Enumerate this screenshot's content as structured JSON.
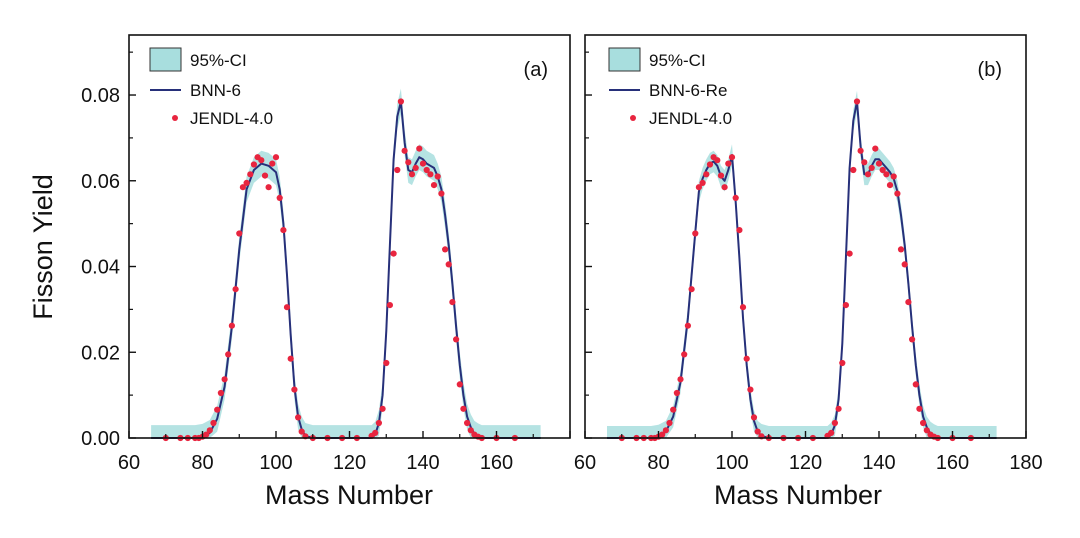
{
  "figure": {
    "ylabel": "Fisson Yield",
    "xlabel": "Mass Number"
  },
  "colors": {
    "ci_band": "#a8dede",
    "model_line": "#27307a",
    "reference_points": "#e8253f",
    "axes": "#111111"
  },
  "chart_data": [
    {
      "type": "line",
      "panel_label": "(a)",
      "xlabel": "Mass Number",
      "ylabel": "Fisson Yield",
      "xlim": [
        60,
        180
      ],
      "ylim": [
        0,
        0.094
      ],
      "xticks": [
        "60",
        "80",
        "100",
        "120",
        "140",
        "160"
      ],
      "yticks": [
        "0.00",
        "0.02",
        "0.04",
        "0.06",
        "0.08"
      ],
      "legend": {
        "position": "top-left",
        "entries": [
          "95%-CI",
          "BNN-6",
          "JENDL-4.0"
        ]
      },
      "series": [
        {
          "name": "BNN-6",
          "x": [
            66,
            70,
            74,
            76,
            78,
            80,
            82,
            84,
            86,
            88,
            90,
            92,
            94,
            96,
            98,
            100,
            101,
            102,
            103,
            104,
            105,
            106,
            107,
            108,
            110,
            114,
            118,
            122,
            126,
            127,
            128,
            129,
            130,
            131,
            132,
            133,
            134,
            135,
            136,
            137,
            138,
            139,
            140,
            141,
            142,
            143,
            144,
            145,
            146,
            147,
            148,
            149,
            150,
            151,
            152,
            153,
            154,
            155,
            156,
            160,
            165,
            172
          ],
          "values": [
            0,
            0,
            0,
            0,
            0,
            0.0003,
            0.0012,
            0.0045,
            0.012,
            0.026,
            0.044,
            0.058,
            0.0625,
            0.064,
            0.0635,
            0.062,
            0.058,
            0.05,
            0.038,
            0.024,
            0.012,
            0.005,
            0.002,
            0.0005,
            0,
            0,
            0,
            0,
            0,
            0.0008,
            0.0035,
            0.01,
            0.025,
            0.045,
            0.065,
            0.075,
            0.0785,
            0.069,
            0.0625,
            0.062,
            0.064,
            0.0655,
            0.065,
            0.064,
            0.0635,
            0.063,
            0.061,
            0.058,
            0.052,
            0.045,
            0.036,
            0.026,
            0.017,
            0.01,
            0.005,
            0.0025,
            0.001,
            0.0004,
            0,
            0,
            0,
            0
          ]
        },
        {
          "name": "95%-CI",
          "x": [
            66,
            70,
            74,
            76,
            78,
            80,
            82,
            84,
            86,
            88,
            90,
            92,
            94,
            96,
            98,
            100,
            101,
            102,
            103,
            104,
            105,
            106,
            107,
            108,
            110,
            114,
            118,
            122,
            126,
            127,
            128,
            129,
            130,
            131,
            132,
            133,
            134,
            135,
            136,
            137,
            138,
            139,
            140,
            141,
            142,
            143,
            144,
            145,
            146,
            147,
            148,
            149,
            150,
            151,
            152,
            153,
            154,
            155,
            156,
            160,
            165,
            172
          ],
          "lower": [
            0,
            0,
            0,
            0,
            0,
            0,
            0,
            0.0015,
            0.009,
            0.023,
            0.041,
            0.055,
            0.0595,
            0.061,
            0.0605,
            0.059,
            0.055,
            0.047,
            0.035,
            0.021,
            0.009,
            0.002,
            0,
            0,
            0,
            0,
            0,
            0,
            0,
            0,
            0.0005,
            0.007,
            0.022,
            0.042,
            0.062,
            0.072,
            0.0755,
            0.066,
            0.0595,
            0.059,
            0.061,
            0.0625,
            0.062,
            0.061,
            0.0605,
            0.06,
            0.058,
            0.055,
            0.049,
            0.042,
            0.033,
            0.023,
            0.014,
            0.007,
            0.002,
            0,
            0,
            0,
            0,
            0,
            0,
            0
          ],
          "upper": [
            0.003,
            0.003,
            0.003,
            0.003,
            0.003,
            0.0033,
            0.0042,
            0.0075,
            0.015,
            0.029,
            0.047,
            0.061,
            0.0655,
            0.067,
            0.0665,
            0.065,
            0.061,
            0.053,
            0.041,
            0.027,
            0.015,
            0.008,
            0.005,
            0.0035,
            0.003,
            0.003,
            0.003,
            0.003,
            0.003,
            0.0038,
            0.0065,
            0.013,
            0.028,
            0.048,
            0.068,
            0.078,
            0.0815,
            0.072,
            0.0655,
            0.065,
            0.067,
            0.0685,
            0.068,
            0.067,
            0.0665,
            0.066,
            0.064,
            0.061,
            0.055,
            0.048,
            0.039,
            0.029,
            0.02,
            0.013,
            0.008,
            0.0055,
            0.004,
            0.0034,
            0.003,
            0.003,
            0.003,
            0.003
          ]
        },
        {
          "name": "JENDL-4.0",
          "x": [
            70,
            74,
            76,
            78,
            79,
            80,
            81,
            82,
            83,
            84,
            85,
            86,
            87,
            88,
            89,
            90,
            91,
            92,
            93,
            94,
            95,
            96,
            97,
            98,
            99,
            100,
            101,
            102,
            103,
            104,
            105,
            106,
            107,
            108,
            110,
            114,
            118,
            122,
            126,
            127,
            128,
            129,
            130,
            131,
            132,
            133,
            134,
            135,
            136,
            137,
            138,
            139,
            140,
            141,
            142,
            143,
            144,
            145,
            146,
            147,
            148,
            149,
            150,
            151,
            152,
            153,
            154,
            155,
            156,
            160,
            165
          ],
          "values": [
            0,
            0,
            0,
            0,
            0,
            0.0003,
            0.0008,
            0.0018,
            0.0035,
            0.0066,
            0.0105,
            0.0137,
            0.0195,
            0.0262,
            0.0347,
            0.0477,
            0.0585,
            0.0595,
            0.0615,
            0.0638,
            0.0655,
            0.0648,
            0.0612,
            0.0585,
            0.064,
            0.0655,
            0.056,
            0.0485,
            0.0305,
            0.0185,
            0.0113,
            0.0048,
            0.0015,
            0.0004,
            0,
            0,
            0,
            0,
            0.0005,
            0.0012,
            0.0035,
            0.0068,
            0.0175,
            0.031,
            0.043,
            0.0625,
            0.0785,
            0.067,
            0.0643,
            0.0615,
            0.063,
            0.0675,
            0.064,
            0.0625,
            0.0615,
            0.059,
            0.061,
            0.057,
            0.044,
            0.0405,
            0.0317,
            0.023,
            0.0125,
            0.0068,
            0.0035,
            0.0018,
            0.0008,
            0.0003,
            0,
            0,
            0
          ]
        }
      ]
    },
    {
      "type": "line",
      "panel_label": "(b)",
      "xlabel": "Mass Number",
      "ylabel": "Fisson Yield",
      "xlim": [
        60,
        180
      ],
      "ylim": [
        0,
        0.094
      ],
      "xticks": [
        "60",
        "80",
        "100",
        "120",
        "140",
        "160",
        "180"
      ],
      "yticks": [
        "0.00",
        "0.02",
        "0.04",
        "0.06",
        "0.08"
      ],
      "legend": {
        "position": "top-left",
        "entries": [
          "95%-CI",
          "BNN-6-Re",
          "JENDL-4.0"
        ]
      },
      "series": [
        {
          "name": "BNN-6-Re",
          "x": [
            66,
            70,
            74,
            76,
            78,
            80,
            82,
            84,
            86,
            88,
            90,
            91,
            92,
            93,
            94,
            95,
            96,
            97,
            98,
            99,
            100,
            101,
            102,
            103,
            104,
            105,
            106,
            107,
            108,
            110,
            114,
            118,
            122,
            126,
            127,
            128,
            129,
            130,
            131,
            132,
            133,
            134,
            135,
            136,
            137,
            138,
            139,
            140,
            141,
            142,
            143,
            144,
            145,
            146,
            147,
            148,
            149,
            150,
            151,
            152,
            153,
            154,
            155,
            156,
            160,
            165,
            172
          ],
          "values": [
            0,
            0,
            0,
            0,
            0,
            0.0003,
            0.0015,
            0.005,
            0.013,
            0.028,
            0.048,
            0.0575,
            0.0605,
            0.0625,
            0.064,
            0.0645,
            0.0635,
            0.061,
            0.06,
            0.0625,
            0.066,
            0.055,
            0.042,
            0.028,
            0.017,
            0.009,
            0.004,
            0.0015,
            0.0005,
            0,
            0,
            0,
            0,
            0,
            0.0008,
            0.003,
            0.009,
            0.022,
            0.042,
            0.063,
            0.074,
            0.0785,
            0.068,
            0.0615,
            0.0615,
            0.0635,
            0.065,
            0.065,
            0.064,
            0.063,
            0.062,
            0.0605,
            0.0575,
            0.052,
            0.045,
            0.036,
            0.026,
            0.017,
            0.01,
            0.005,
            0.0025,
            0.001,
            0.0004,
            0,
            0,
            0,
            0
          ]
        },
        {
          "name": "95%-CI",
          "x": [
            66,
            70,
            74,
            76,
            78,
            80,
            82,
            84,
            86,
            88,
            90,
            91,
            92,
            93,
            94,
            95,
            96,
            97,
            98,
            99,
            100,
            101,
            102,
            103,
            104,
            105,
            106,
            107,
            108,
            110,
            114,
            118,
            122,
            126,
            127,
            128,
            129,
            130,
            131,
            132,
            133,
            134,
            135,
            136,
            137,
            138,
            139,
            140,
            141,
            142,
            143,
            144,
            145,
            146,
            147,
            148,
            149,
            150,
            151,
            152,
            153,
            154,
            155,
            156,
            160,
            165,
            172
          ],
          "lower": [
            0,
            0,
            0,
            0,
            0,
            0,
            0,
            0.0025,
            0.0105,
            0.0255,
            0.0455,
            0.055,
            0.058,
            0.06,
            0.0615,
            0.062,
            0.061,
            0.0585,
            0.0575,
            0.06,
            0.0635,
            0.0525,
            0.0395,
            0.0255,
            0.0145,
            0.0065,
            0.0015,
            0,
            0,
            0,
            0,
            0,
            0,
            0,
            0,
            0.0005,
            0.0065,
            0.0195,
            0.0395,
            0.0605,
            0.0715,
            0.076,
            0.0655,
            0.059,
            0.059,
            0.061,
            0.0625,
            0.0625,
            0.0615,
            0.0605,
            0.0595,
            0.058,
            0.055,
            0.0495,
            0.0425,
            0.0335,
            0.0235,
            0.0145,
            0.0075,
            0.0025,
            0,
            0,
            0,
            0,
            0,
            0,
            0
          ],
          "upper": [
            0.0028,
            0.0028,
            0.0028,
            0.0028,
            0.0028,
            0.0031,
            0.004,
            0.0075,
            0.0155,
            0.0305,
            0.0505,
            0.06,
            0.063,
            0.065,
            0.0665,
            0.067,
            0.066,
            0.0635,
            0.0625,
            0.065,
            0.0685,
            0.0575,
            0.0445,
            0.0305,
            0.0195,
            0.0115,
            0.0065,
            0.004,
            0.0033,
            0.0028,
            0.0028,
            0.0028,
            0.0028,
            0.0028,
            0.0036,
            0.0055,
            0.0115,
            0.0245,
            0.0445,
            0.0655,
            0.0765,
            0.081,
            0.0705,
            0.064,
            0.064,
            0.066,
            0.0675,
            0.0675,
            0.0665,
            0.0655,
            0.0645,
            0.063,
            0.06,
            0.0545,
            0.0475,
            0.0385,
            0.0285,
            0.0195,
            0.0125,
            0.0075,
            0.005,
            0.0038,
            0.0032,
            0.0028,
            0.0028,
            0.0028,
            0.0028
          ]
        },
        {
          "name": "JENDL-4.0",
          "x": [
            70,
            74,
            76,
            78,
            79,
            80,
            81,
            82,
            83,
            84,
            85,
            86,
            87,
            88,
            89,
            90,
            91,
            92,
            93,
            94,
            95,
            96,
            97,
            98,
            99,
            100,
            101,
            102,
            103,
            104,
            105,
            106,
            107,
            108,
            110,
            114,
            118,
            122,
            126,
            127,
            128,
            129,
            130,
            131,
            132,
            133,
            134,
            135,
            136,
            137,
            138,
            139,
            140,
            141,
            142,
            143,
            144,
            145,
            146,
            147,
            148,
            149,
            150,
            151,
            152,
            153,
            154,
            155,
            156,
            160,
            165
          ],
          "values": [
            0,
            0,
            0,
            0,
            0,
            0.0003,
            0.0008,
            0.0018,
            0.0035,
            0.0066,
            0.0105,
            0.0137,
            0.0195,
            0.0262,
            0.0347,
            0.0477,
            0.0585,
            0.0595,
            0.0615,
            0.0638,
            0.0655,
            0.0648,
            0.0612,
            0.0585,
            0.064,
            0.0655,
            0.056,
            0.0485,
            0.0305,
            0.0185,
            0.0113,
            0.0048,
            0.0015,
            0.0004,
            0,
            0,
            0,
            0,
            0.0005,
            0.0012,
            0.0035,
            0.0068,
            0.0175,
            0.031,
            0.043,
            0.0625,
            0.0785,
            0.067,
            0.0643,
            0.0615,
            0.063,
            0.0675,
            0.064,
            0.0625,
            0.0615,
            0.059,
            0.061,
            0.057,
            0.044,
            0.0405,
            0.0317,
            0.023,
            0.0125,
            0.0068,
            0.0035,
            0.0018,
            0.0008,
            0.0003,
            0,
            0,
            0
          ]
        }
      ]
    }
  ]
}
